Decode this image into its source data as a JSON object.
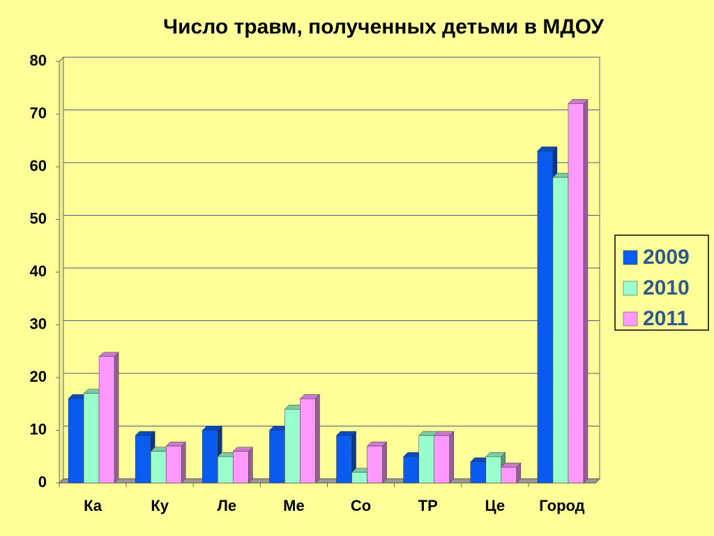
{
  "chart_data": {
    "type": "bar",
    "title": "Число травм, полученных детьми в МДОУ",
    "categories": [
      "Ка",
      "Ку",
      "Ле",
      "Ме",
      "Со",
      "ТР",
      "Це",
      "Город"
    ],
    "series": [
      {
        "name": "2009",
        "color": "#0a5cf0",
        "values": [
          16,
          9,
          10,
          10,
          9,
          5,
          4,
          63
        ]
      },
      {
        "name": "2010",
        "color": "#99ffcc",
        "values": [
          17,
          6,
          5,
          14,
          2,
          9,
          5,
          58
        ]
      },
      {
        "name": "2011",
        "color": "#ff99ff",
        "values": [
          24,
          7,
          6,
          16,
          7,
          9,
          3,
          72
        ]
      }
    ],
    "ylim": [
      0,
      80
    ],
    "yticks": [
      0,
      10,
      20,
      30,
      40,
      50,
      60,
      70,
      80
    ],
    "grid": true,
    "legend": "right"
  }
}
